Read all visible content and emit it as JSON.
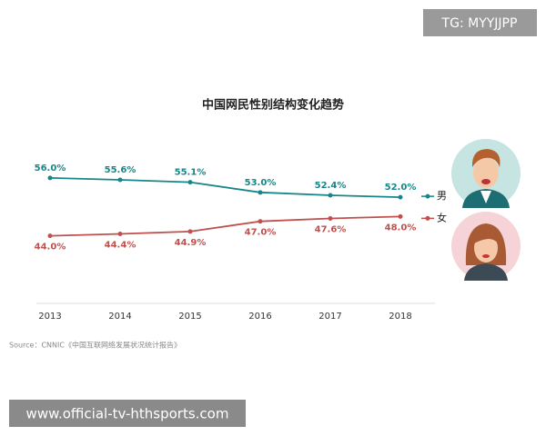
{
  "chart_data": {
    "type": "line",
    "title": "中国网民性别结构变化趋势",
    "categories": [
      "2013",
      "2014",
      "2015",
      "2016",
      "2017",
      "2018"
    ],
    "series": [
      {
        "name": "男",
        "color": "#17868a",
        "values": [
          56.0,
          55.6,
          55.1,
          53.0,
          52.4,
          52.0
        ],
        "value_labels": [
          "56.0%",
          "55.6%",
          "55.1%",
          "53.0%",
          "52.4%",
          "52.0%"
        ]
      },
      {
        "name": "女",
        "color": "#c0504d",
        "values": [
          44.0,
          44.4,
          44.9,
          47.0,
          47.6,
          48.0
        ],
        "value_labels": [
          "44.0%",
          "44.4%",
          "44.9%",
          "47.0%",
          "47.6%",
          "48.0%"
        ]
      }
    ],
    "ylim": [
      30,
      62
    ],
    "legend": "right",
    "source": "Source：CNNIC《中国互联网络发展状况统计报告》"
  },
  "watermark": "TG: MYYJJPP",
  "banner": "www.official-tv-hthsports.com"
}
